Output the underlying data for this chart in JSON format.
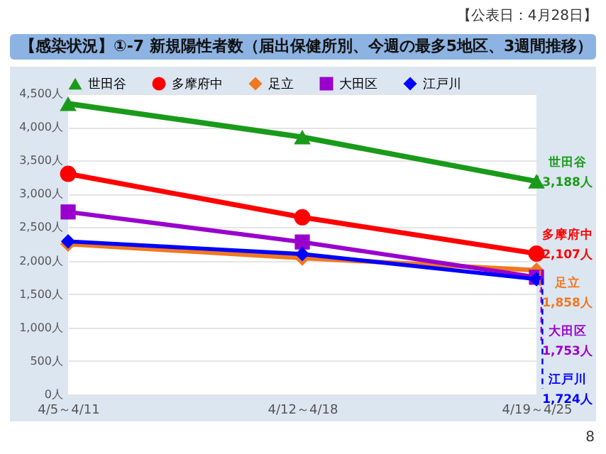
{
  "chart_data": {
    "type": "line",
    "title": "【感染状況】①-7 新規陽性者数（届出保健所別、今週の最多5地区、3週間推移）",
    "annotations": [
      "【公表日：4月28日】",
      "8"
    ],
    "categories": [
      "4/5～4/11",
      "4/12～4/18",
      "4/19～4/25"
    ],
    "series": [
      {
        "name": "世田谷",
        "color": "#1a9a1a",
        "marker": "triangle",
        "values": [
          4350,
          3850,
          3188
        ],
        "value_labels": [
          null,
          null,
          "3,188人"
        ]
      },
      {
        "name": "多摩府中",
        "color": "#ff0000",
        "marker": "circle",
        "values": [
          3300,
          2650,
          2107
        ],
        "value_labels": [
          null,
          null,
          "2,107人"
        ]
      },
      {
        "name": "足立",
        "color": "#f07820",
        "marker": "diamond",
        "values": [
          2250,
          2040,
          1858
        ],
        "value_labels": [
          null,
          null,
          "1,858人"
        ]
      },
      {
        "name": "大田区",
        "color": "#9900cc",
        "marker": "square",
        "values": [
          2730,
          2280,
          1753
        ],
        "value_labels": [
          null,
          null,
          "1,753人"
        ]
      },
      {
        "name": "江戸川",
        "color": "#0000ff",
        "marker": "diamond",
        "values": [
          2290,
          2100,
          1724
        ],
        "value_labels": [
          null,
          null,
          "1,724人"
        ]
      }
    ],
    "ylim": [
      0,
      4500
    ],
    "yticks": [
      {
        "value": 0,
        "label": "0人"
      },
      {
        "value": 500,
        "label": "500人"
      },
      {
        "value": 1000,
        "label": "1,000人"
      },
      {
        "value": 1500,
        "label": "1,500人"
      },
      {
        "value": 2000,
        "label": "2,000人"
      },
      {
        "value": 2500,
        "label": "2,500人"
      },
      {
        "value": 3000,
        "label": "3,000人"
      },
      {
        "value": 3500,
        "label": "3,500人"
      },
      {
        "value": 4000,
        "label": "4,000人"
      },
      {
        "value": 4500,
        "label": "4,500人"
      }
    ],
    "grid": "y",
    "legend": "top",
    "line_style": "solid"
  }
}
